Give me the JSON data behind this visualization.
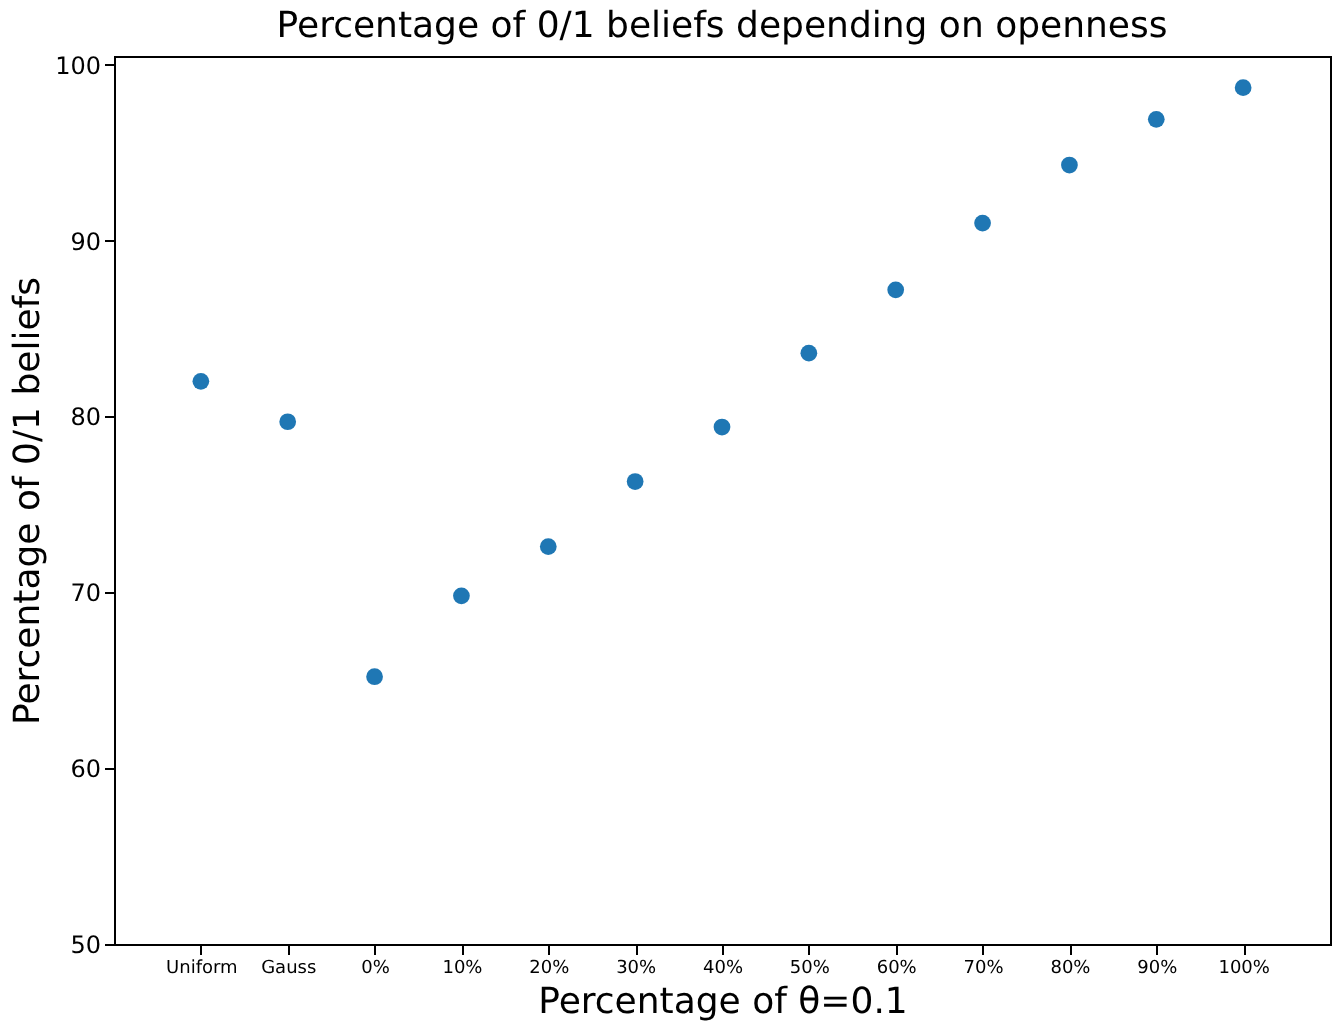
{
  "chart_data": {
    "type": "scatter",
    "title": "Percentage of 0/1 beliefs depending on openness",
    "xlabel": "Percentage of θ=0.1",
    "ylabel": "Percentage of 0/1 beliefs",
    "categories": [
      "Uniform",
      "Gauss",
      "0%",
      "10%",
      "20%",
      "30%",
      "40%",
      "50%",
      "60%",
      "70%",
      "80%",
      "90%",
      "100%"
    ],
    "series": [
      {
        "color": "#1f77b4",
        "values": [
          82.0,
          79.7,
          65.2,
          69.8,
          72.6,
          76.3,
          79.4,
          83.6,
          87.2,
          91.0,
          94.3,
          96.9,
          98.7
        ]
      }
    ],
    "ylim": [
      50,
      100.5
    ],
    "yticks": [
      50,
      60,
      70,
      80,
      90,
      100
    ],
    "grid": false,
    "marker": "circle"
  }
}
